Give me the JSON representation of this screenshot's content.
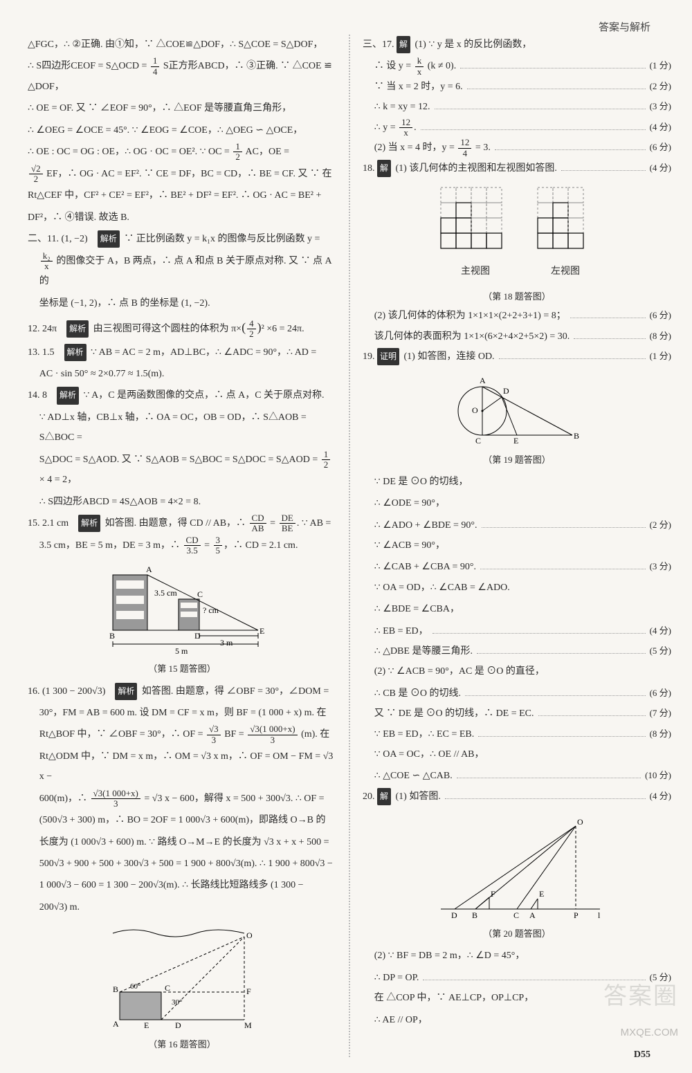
{
  "header": "答案与解析",
  "page_number": "D55",
  "watermarks": {
    "big": "答案圈",
    "small": "MXQE.COM"
  },
  "colors": {
    "bg": "#f8f6f2",
    "text": "#2a2a2a",
    "tag_bg": "#333333",
    "tag_fg": "#ffffff",
    "dotted": "#bbbbbb"
  },
  "tags": {
    "jiexi": "解析",
    "jie": "解",
    "zhengming": "证明"
  },
  "left": {
    "l1": "△FGC，∴ ②正确. 由①知，∵ △COE≌△DOF，∴ S△COE = S△DOF，",
    "l2a": "∴ S四边形CEOF = S△OCD = ",
    "l2b": " S正方形ABCD，∴ ③正确. ∵ △COE ≌ △DOF，",
    "l3": "∴ OE = OF. 又 ∵ ∠EOF = 90°，∴ △EOF 是等腰直角三角形，",
    "l4": "∴ ∠OEG = ∠OCE = 45°. ∵ ∠EOG = ∠COE，∴ △OEG ∽ △OCE，",
    "l5a": "∴ OE : OC = OG : OE，∴ OG · OC = OE². ∵ OC = ",
    "l5b": " AC，OE =",
    "l6a": "",
    "l6b": " EF，∴ OG · AC = EF². ∵ CE = DF，BC = CD，∴ BE = CF. 又 ∵ 在",
    "l7": "Rt△CEF 中，CF² + CE² = EF²，∴ BE² + DF² = EF². ∴ OG · AC = BE² +",
    "l8": "DF²，∴ ④错误. 故选 B.",
    "q11a": "二、11. (1, −2)　",
    "q11b": " ∵ 正比例函数 y = k₁x 的图像与反比例函数 y =",
    "q11c": " 的图像交于 A，B 两点，∴ 点 A 和点 B 关于原点对称. 又 ∵ 点 A 的",
    "q11d": "坐标是 (−1, 2)，∴ 点 B 的坐标是 (1, −2).",
    "q12a": "12. 24π　",
    "q12b": " 由三视图可得这个圆柱的体积为 π×",
    "q12c": "² ×6 = 24π.",
    "q13a": "13. 1.5　",
    "q13b": " ∵ AB = AC = 2 m，AD⊥BC，∴ ∠ADC = 90°，∴ AD =",
    "q13c": "AC · sin 50° ≈ 2×0.77 ≈ 1.5(m).",
    "q14a": "14. 8　",
    "q14b": " ∵ A，C 是两函数图像的交点，∴ 点 A，C 关于原点对称.",
    "q14c": "∵ AD⊥x 轴，CB⊥x 轴，∴ OA = OC，OB = OD，∴ S△AOB = S△BOC =",
    "q14d": "S△DOC = S△AOD. 又 ∵ S△AOB = S△BOC = S△DOC = S△AOD = ",
    "q14e": " × 4 = 2，",
    "q14f": "∴ S四边形ABCD = 4S△AOB = 4×2 = 8.",
    "q15a": "15. 2.1 cm　",
    "q15b": " 如答图. 由题意，得 CD // AB，∴ ",
    "q15c": " = ",
    "q15d": ". ∵ AB =",
    "q15e": "3.5 cm，BE = 5 m，DE = 3 m，∴ ",
    "q15f": " = ",
    "q15g": "，∴ CD = 2.1 cm.",
    "fig15_caption": "（第 15 题答图）",
    "fig15_labels": {
      "A": "A",
      "B": "B",
      "C": "C",
      "D": "D",
      "E": "E",
      "h": "3.5 cm",
      "q": "? cm",
      "d3": "3 m",
      "d5": "5 m"
    },
    "q16a": "16. (1 300 − 200√3)　",
    "q16b": " 如答图. 由题意，得 ∠OBF = 30°，∠DOM =",
    "q16c": "30°，FM = AB = 600 m. 设 DM = CF = x m，则 BF = (1 000 + x) m. 在",
    "q16d": "Rt△BOF 中，∵ ∠OBF = 30°，∴ OF = ",
    "q16e": " BF = ",
    "q16f": " (m). 在",
    "q16g": "Rt△ODM 中，∵ DM = x m，∴ OM = √3 x m，∴ OF = OM − FM = √3 x −",
    "q16h": "600(m)，∴ ",
    "q16i": " = √3 x − 600，解得 x = 500 + 300√3. ∴ OF =",
    "q16j": "(500√3 + 300) m，∴ BO = 2OF = 1 000√3 + 600(m)，即路线 O→B 的",
    "q16k": "长度为 (1 000√3 + 600) m. ∵ 路线 O→M→E 的长度为 √3 x + x + 500 =",
    "q16l": "500√3 + 900 + 500 + 300√3 + 500 = 1 900 + 800√3(m). ∴ 1 900 + 800√3 −",
    "q16m": "1 000√3 − 600 = 1 300 − 200√3(m). ∴ 长路线比短路线多 (1 300 −",
    "q16n": "200√3) m.",
    "fig16_caption": "（第 16 题答图）",
    "fig16_labels": {
      "O": "O",
      "B": "B",
      "A": "A",
      "E": "E",
      "D": "D",
      "M": "M",
      "F": "F",
      "a60": "60°",
      "a30": "30°",
      "C": "C"
    }
  },
  "right": {
    "q17_head": "三、17.",
    "q17_1": "(1) ∵ y 是 x 的反比例函数，",
    "q17_2a": "∴ 设 y = ",
    "q17_2b": " (k ≠ 0).",
    "q17_2score": "(1 分)",
    "q17_3": "∵ 当 x = 2 时，y = 6.",
    "q17_3score": "(2 分)",
    "q17_4": "∴ k = xy = 12.",
    "q17_4score": "(3 分)",
    "q17_5a": "∴ y = ",
    "q17_5b": ".",
    "q17_5score": "(4 分)",
    "q17_6a": "(2) 当 x = 4 时，y = ",
    "q17_6b": " = 3.",
    "q17_6score": "(6 分)",
    "q18_head": "18.",
    "q18_1": "(1) 该几何体的主视图和左视图如答图.",
    "q18_1score": "(4 分)",
    "grid_left_label": "主视图",
    "grid_right_label": "左视图",
    "fig18_caption": "（第 18 题答图）",
    "q18_2": "(2) 该几何体的体积为 1×1×1×(2+2+3+1) = 8；",
    "q18_2score": "(6 分)",
    "q18_3": "该几何体的表面积为 1×1×(6×2+4×2+5×2) = 30.",
    "q18_3score": "(8 分)",
    "q19_head": "19.",
    "q19_1": "(1) 如答图，连接 OD.",
    "q19_1score": "(1 分)",
    "fig19_caption": "（第 19 题答图）",
    "fig19_labels": {
      "A": "A",
      "D": "D",
      "O": "O",
      "C": "C",
      "E": "E",
      "B": "B"
    },
    "q19_2": "∵ DE 是 ⊙O 的切线，",
    "q19_3": "∴ ∠ODE = 90°，",
    "q19_4": "∴ ∠ADO + ∠BDE = 90°.",
    "q19_4score": "(2 分)",
    "q19_5": "∵ ∠ACB = 90°，",
    "q19_6": "∴ ∠CAB + ∠CBA = 90°.",
    "q19_6score": "(3 分)",
    "q19_7": "∵ OA = OD，∴ ∠CAB = ∠ADO.",
    "q19_8": "∴ ∠BDE = ∠CBA，",
    "q19_9": "∴ EB = ED，",
    "q19_9score": "(4 分)",
    "q19_10": "∴ △DBE 是等腰三角形.",
    "q19_10score": "(5 分)",
    "q19_11": "(2) ∵ ∠ACB = 90°，AC 是 ⊙O 的直径，",
    "q19_12": "∴ CB 是 ⊙O 的切线.",
    "q19_12score": "(6 分)",
    "q19_13": "又 ∵ DE 是 ⊙O 的切线，∴ DE = EC.",
    "q19_13score": "(7 分)",
    "q19_14": "∵ EB = ED，∴ EC = EB.",
    "q19_14score": "(8 分)",
    "q19_15": "∵ OA = OC，∴ OE // AB，",
    "q19_16": "∴ △COE ∽ △CAB.",
    "q19_16score": "(10 分)",
    "q20_head": "20.",
    "q20_1": "(1) 如答图.",
    "q20_1score": "(4 分)",
    "fig20_caption": "（第 20 题答图）",
    "fig20_labels": {
      "O": "O",
      "D": "D",
      "B": "B",
      "F": "F",
      "C": "C",
      "A": "A",
      "E": "E",
      "P": "P",
      "l": "l"
    },
    "q20_2": "(2) ∵ BF = DB = 2 m，∴ ∠D = 45°，",
    "q20_3": "∴ DP = OP.",
    "q20_3score": "(5 分)",
    "q20_4": "在 △COP 中，∵ AE⊥CP，OP⊥CP，",
    "q20_5": "∴ AE // OP，"
  },
  "fig18_grid": {
    "front_cells": [
      [
        0,
        0,
        0,
        0
      ],
      [
        0,
        1,
        0,
        0
      ],
      [
        1,
        1,
        0,
        0
      ],
      [
        1,
        1,
        1,
        1
      ]
    ],
    "left_cells": [
      [
        0,
        0,
        0
      ],
      [
        0,
        1,
        0
      ],
      [
        1,
        1,
        0
      ],
      [
        1,
        1,
        1
      ]
    ]
  }
}
